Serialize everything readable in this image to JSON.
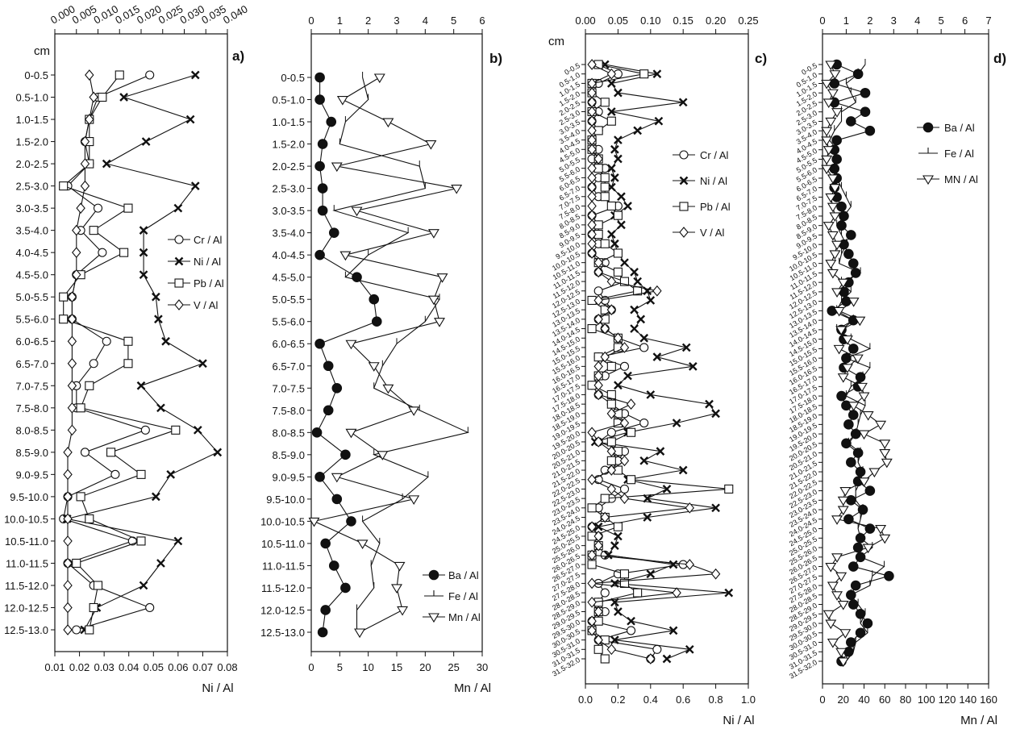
{
  "chart_data": [
    {
      "panel_label": "a)",
      "type": "line",
      "orientation": "vertical-profile",
      "y_title": "cm",
      "depths": [
        "0-0.5",
        "0.5-1.0",
        "1.0-1.5",
        "1.5-2.0",
        "2.0-2.5",
        "2.5-3.0",
        "3.0-3.5",
        "3.5-4.0",
        "4.0-4.5",
        "4.5-5.0",
        "5.0-5.5",
        "5.5-6.0",
        "6.0-6.5",
        "6.5-7.0",
        "7.0-7.5",
        "7.5-8.0",
        "8.0-8.5",
        "8.5-9.0",
        "9.0-9.5",
        "9.5-10.0",
        "10.0-10.5",
        "10.5-11.0",
        "11.0-11.5",
        "11.5-12.0",
        "12.0-12.5",
        "12.5-13.0"
      ],
      "x_bottom": {
        "label": "Ni / Al",
        "ticks": [
          "0.01",
          "0.02",
          "0.03",
          "0.04",
          "0.05",
          "0.06",
          "0.07",
          "0.08"
        ],
        "lim": [
          0.01,
          0.08
        ]
      },
      "x_top": {
        "ticks": [
          "0.000",
          "0.005",
          "0.010",
          "0.015",
          "0.020",
          "0.025",
          "0.030",
          "0.035",
          "0.040"
        ],
        "lim": [
          0.0,
          0.04
        ]
      },
      "series": [
        {
          "name": "Cr / Al",
          "axis": "top",
          "marker": "circle-open",
          "values": [
            0.022,
            0.01,
            0.008,
            0.007,
            0.008,
            0.003,
            0.01,
            0.006,
            0.011,
            0.005,
            0.004,
            0.004,
            0.012,
            0.009,
            0.005,
            0.005,
            0.021,
            0.007,
            0.014,
            0.003,
            0.002,
            0.018,
            0.003,
            0.009,
            0.022,
            0.005
          ]
        },
        {
          "name": "Ni / Al",
          "axis": "bottom",
          "marker": "x",
          "values": [
            0.067,
            0.038,
            0.065,
            0.047,
            0.031,
            0.067,
            0.06,
            0.046,
            0.046,
            0.046,
            0.051,
            0.052,
            0.055,
            0.07,
            0.045,
            0.053,
            0.068,
            0.076,
            0.057,
            0.051,
            0.015,
            0.06,
            0.053,
            0.046,
            0.027,
            0.022
          ]
        },
        {
          "name": "Pb / Al",
          "axis": "top",
          "marker": "square-open",
          "values": [
            0.015,
            0.011,
            0.008,
            0.008,
            0.008,
            0.002,
            0.017,
            0.009,
            0.016,
            0.006,
            0.002,
            0.002,
            0.017,
            0.017,
            0.008,
            0.006,
            0.028,
            0.013,
            0.02,
            0.006,
            0.008,
            0.02,
            0.005,
            0.01,
            0.009,
            0.008
          ]
        },
        {
          "name": "V / Al",
          "axis": "top",
          "marker": "diamond-open",
          "values": [
            0.008,
            0.009,
            0.008,
            0.007,
            0.007,
            0.007,
            0.006,
            0.005,
            0.005,
            0.005,
            0.004,
            0.004,
            0.004,
            0.004,
            0.004,
            0.004,
            0.004,
            0.003,
            0.003,
            0.003,
            0.003,
            0.003,
            0.003,
            0.003,
            0.003,
            0.003
          ]
        }
      ]
    },
    {
      "panel_label": "b)",
      "type": "line",
      "orientation": "vertical-profile",
      "depths": [
        "0-0.5",
        "0.5-1.0",
        "1.0-1.5",
        "1.5-2.0",
        "2.0-2.5",
        "2.5-3.0",
        "3.0-3.5",
        "3.5-4.0",
        "4.0-4.5",
        "4.5-5.0",
        "5.0-5.5",
        "5.5-6.0",
        "6.0-6.5",
        "6.5-7.0",
        "7.0-7.5",
        "7.5-8.0",
        "8.0-8.5",
        "8.5-9.0",
        "9.0-9.5",
        "9.5-10.0",
        "10.0-10.5",
        "10.5-11.0",
        "11.0-11.5",
        "11.5-12.0",
        "12.0-12.5",
        "12.5-13.0"
      ],
      "x_bottom": {
        "label": "Mn / Al",
        "ticks": [
          "0",
          "5",
          "10",
          "15",
          "20",
          "25",
          "30"
        ],
        "lim": [
          0,
          30
        ]
      },
      "x_top": {
        "ticks": [
          "0",
          "1",
          "2",
          "3",
          "4",
          "5",
          "6"
        ],
        "lim": [
          0,
          6
        ]
      },
      "series": [
        {
          "name": "Ba / Al",
          "axis": "top",
          "marker": "circle-filled",
          "values": [
            0.3,
            0.3,
            0.7,
            0.4,
            0.3,
            0.4,
            0.4,
            0.8,
            0.3,
            1.6,
            2.2,
            2.3,
            0.3,
            0.6,
            0.9,
            0.6,
            0.2,
            1.2,
            0.3,
            0.9,
            1.4,
            0.5,
            0.8,
            1.2,
            0.5,
            0.4
          ]
        },
        {
          "name": "Fe / Al",
          "axis": "top",
          "marker": "none",
          "values": [
            1.8,
            2.0,
            1.2,
            1.0,
            3.8,
            4.0,
            0.8,
            3.4,
            2.0,
            1.2,
            4.5,
            4.0,
            3.0,
            2.5,
            2.2,
            3.8,
            5.5,
            2.2,
            4.1,
            3.2,
            1.8,
            2.4,
            2.1,
            2.2,
            1.6,
            1.6
          ]
        },
        {
          "name": "Mn / Al",
          "axis": "bottom",
          "marker": "triangle-down-open",
          "values": [
            12.0,
            5.5,
            13.5,
            21.0,
            4.5,
            25.5,
            8.0,
            21.5,
            6.0,
            23.0,
            21.5,
            22.5,
            7.0,
            11.0,
            13.5,
            18.0,
            7.0,
            12.5,
            4.5,
            18.0,
            0.5,
            9.0,
            15.5,
            15.0,
            16.0,
            8.5
          ]
        }
      ]
    },
    {
      "panel_label": "c)",
      "type": "line",
      "orientation": "vertical-profile",
      "y_title": "cm",
      "depths": [
        "0-0.5",
        "0.5-1.0",
        "1.0-1.5",
        "1.5-2.0",
        "2.0-2.5",
        "2.5-3.0",
        "3.0-3.5",
        "3.5-4.0",
        "4.0-4.5",
        "4.5-5.0",
        "5.0-5.5",
        "5.5-6.0",
        "6.0-6.5",
        "6.5-7.0",
        "7.0-7.5",
        "7.5-8.0",
        "8.0-8.5",
        "8.5-9.0",
        "9.0-9.5",
        "9.5-10.0",
        "10.0-10.5",
        "10.5-11.0",
        "11.0-11.5",
        "11.5-12.0",
        "12.0-12.5",
        "12.5-13.0",
        "13.0-13.5",
        "13.5-14.0",
        "14.0-14.5",
        "14.5-15.0",
        "15.0-15.5",
        "15.5-16.0",
        "16.0-16.5",
        "16.5-17.0",
        "17.0-17.5",
        "17.5-18.0",
        "18.0-18.5",
        "18.5-19.0",
        "19.0-19.5",
        "19.5-20.0",
        "20.0-20.5",
        "20.5-21.0",
        "21.0-21.5",
        "21.5-22.0",
        "22.0-22.5",
        "22.5-23.0",
        "23.0-23.5",
        "23.5-24.0",
        "24.0-24.5",
        "24.5-25.0",
        "25.0-25.5",
        "25.5-26.0",
        "26.0-26.5",
        "26.5-27.0",
        "27.0-27.5",
        "27.5-28.0",
        "28.0-28.5",
        "28.5-29.0",
        "29.0-29.5",
        "29.5-30.0",
        "30.0-30.5",
        "30.5-31.0",
        "31.0-31.5",
        "31.5-32.0"
      ],
      "x_bottom": {
        "label": "Ni / Al",
        "ticks": [
          "0.0",
          "0.2",
          "0.4",
          "0.6",
          "0.8",
          "1.0"
        ],
        "lim": [
          0.0,
          1.0
        ]
      },
      "x_top": {
        "ticks": [
          "0.00",
          "0.05",
          "0.10",
          "0.15",
          "0.20",
          "0.25"
        ],
        "lim": [
          0.0,
          0.25
        ]
      },
      "series": [
        {
          "name": "Cr / Al",
          "axis": "top",
          "marker": "circle-open",
          "values": [
            0.02,
            0.05,
            0.02,
            0.01,
            0.01,
            0.02,
            0.01,
            0.02,
            0.01,
            0.02,
            0.01,
            0.03,
            0.02,
            0.01,
            0.02,
            0.05,
            0.01,
            0.02,
            0.01,
            0.02,
            0.01,
            0.03,
            0.02,
            0.06,
            0.02,
            0.03,
            0.04,
            0.02,
            0.03,
            0.05,
            0.09,
            0.02,
            0.06,
            0.03,
            0.01,
            0.02,
            0.04,
            0.06,
            0.09,
            0.04,
            0.02,
            0.06,
            0.05,
            0.03,
            0.02,
            0.06,
            0.04,
            0.02,
            0.03,
            0.01,
            0.02,
            0.02,
            0.03,
            0.15,
            0.05,
            0.02,
            0.03,
            0.02,
            0.03,
            0.01,
            0.07,
            0.02,
            0.11,
            0.1
          ]
        },
        {
          "name": "Ni / Al",
          "axis": "bottom",
          "marker": "x",
          "values": [
            0.12,
            0.44,
            0.16,
            0.2,
            0.6,
            0.16,
            0.45,
            0.32,
            0.2,
            0.18,
            0.2,
            0.16,
            0.18,
            0.16,
            0.22,
            0.26,
            0.18,
            0.22,
            0.16,
            0.18,
            0.2,
            0.24,
            0.3,
            0.32,
            0.38,
            0.4,
            0.3,
            0.34,
            0.3,
            0.36,
            0.62,
            0.44,
            0.66,
            0.26,
            0.2,
            0.4,
            0.76,
            0.8,
            0.56,
            0.26,
            0.06,
            0.46,
            0.36,
            0.6,
            0.26,
            0.5,
            0.38,
            0.8,
            0.38,
            0.08,
            0.2,
            0.18,
            0.14,
            0.54,
            0.4,
            0.18,
            0.88,
            0.18,
            0.2,
            0.28,
            0.54,
            0.18,
            0.64,
            0.5
          ]
        },
        {
          "name": "Pb / Al",
          "axis": "top",
          "marker": "square-open",
          "values": [
            0.02,
            0.09,
            0.01,
            0.01,
            0.03,
            0.01,
            0.04,
            0.02,
            0.01,
            0.01,
            0.02,
            0.02,
            0.03,
            0.03,
            0.03,
            0.04,
            0.05,
            0.02,
            0.02,
            0.03,
            0.05,
            0.02,
            0.05,
            0.06,
            0.08,
            0.01,
            0.03,
            0.03,
            0.01,
            0.05,
            0.05,
            0.02,
            0.04,
            0.02,
            0.01,
            0.04,
            0.04,
            0.05,
            0.05,
            0.07,
            0.04,
            0.05,
            0.04,
            0.05,
            0.07,
            0.22,
            0.03,
            0.01,
            0.03,
            0.05,
            0.01,
            0.02,
            0.01,
            0.01,
            0.06,
            0.06,
            0.08,
            0.02,
            0.02,
            0.02,
            0.01,
            0.03,
            0.02,
            0.03
          ]
        },
        {
          "name": "V / Al",
          "axis": "top",
          "marker": "diamond-open",
          "values": [
            0.01,
            0.04,
            0.01,
            0.01,
            0.01,
            0.01,
            0.01,
            0.01,
            0.01,
            0.01,
            0.02,
            0.01,
            0.01,
            0.01,
            0.01,
            0.01,
            0.01,
            0.01,
            0.01,
            0.01,
            0.01,
            0.02,
            0.02,
            0.04,
            0.11,
            0.02,
            0.04,
            0.02,
            0.03,
            0.05,
            0.06,
            0.03,
            0.02,
            0.02,
            0.02,
            0.02,
            0.07,
            0.04,
            0.06,
            0.01,
            0.02,
            0.04,
            0.06,
            0.04,
            0.01,
            0.04,
            0.06,
            0.16,
            0.03,
            0.01,
            0.02,
            0.02,
            0.01,
            0.16,
            0.2,
            0.01,
            0.14,
            0.01,
            0.02,
            0.01,
            0.01,
            0.02,
            0.04,
            0.1
          ]
        }
      ]
    },
    {
      "panel_label": "d)",
      "type": "line",
      "orientation": "vertical-profile",
      "depths": [
        "0-0.5",
        "0.5-1.0",
        "1.0-1.5",
        "1.5-2.0",
        "2.0-2.5",
        "2.5-3.0",
        "3.0-3.5",
        "3.5-4.0",
        "4.0-4.5",
        "4.5-5.0",
        "5.0-5.5",
        "5.5-6.0",
        "6.0-6.5",
        "6.5-7.0",
        "7.0-7.5",
        "7.5-8.0",
        "8.0-8.5",
        "8.5-9.0",
        "9.0-9.5",
        "9.5-10.0",
        "10.0-10.5",
        "10.5-11.0",
        "11.0-11.5",
        "11.5-12.0",
        "12.0-12.5",
        "12.5-13.0",
        "13.0-13.5",
        "13.5-14.0",
        "14.0-14.5",
        "14.5-15.0",
        "15.0-15.5",
        "15.5-16.0",
        "16.0-16.5",
        "16.5-17.0",
        "17.0-17.5",
        "17.5-18.0",
        "18.0-18.5",
        "18.5-19.0",
        "19.0-19.5",
        "19.5-20.0",
        "20.0-20.5",
        "20.5-21.0",
        "21.0-21.5",
        "21.5-22.0",
        "22.0-22.5",
        "22.5-23.0",
        "23.0-23.5",
        "23.5-24.0",
        "24.0-24.5",
        "24.5-25.0",
        "25.0-25.5",
        "25.5-26.0",
        "26.0-26.5",
        "26.5-27.0",
        "27.0-27.5",
        "27.5-28.0",
        "28.0-28.5",
        "28.5-29.0",
        "29.0-29.5",
        "29.5-30.0",
        "30.0-30.5",
        "30.5-31.0",
        "31.0-31.5",
        "31.5-32.0"
      ],
      "x_bottom": {
        "label": "Mn / Al",
        "ticks": [
          "0",
          "20",
          "40",
          "60",
          "80",
          "100",
          "120",
          "140",
          "160"
        ],
        "lim": [
          0,
          160
        ]
      },
      "x_top": {
        "ticks": [
          "0",
          "1",
          "2",
          "3",
          "4",
          "5",
          "6",
          "7"
        ],
        "lim": [
          0,
          7
        ]
      },
      "series": [
        {
          "name": "Ba / Al",
          "axis": "top",
          "marker": "circle-filled",
          "values": [
            0.6,
            1.5,
            0.5,
            1.8,
            0.5,
            1.8,
            1.2,
            2.0,
            0.6,
            0.5,
            0.6,
            0.5,
            0.6,
            0.5,
            0.6,
            0.8,
            0.9,
            0.8,
            1.2,
            0.9,
            1.1,
            1.3,
            1.4,
            1.1,
            0.9,
            1.0,
            0.4,
            1.3,
            0.8,
            0.9,
            1.3,
            1.0,
            0.9,
            1.6,
            1.5,
            0.8,
            1.0,
            1.3,
            1.1,
            1.4,
            1.0,
            1.5,
            1.2,
            1.6,
            1.5,
            2.0,
            1.2,
            1.7,
            1.1,
            2.0,
            1.6,
            1.5,
            1.6,
            1.3,
            2.8,
            1.4,
            1.2,
            1.3,
            1.6,
            1.9,
            1.6,
            1.2,
            1.1,
            0.8
          ]
        },
        {
          "name": "Fe / Al",
          "axis": "top",
          "marker": "none",
          "values": [
            1.8,
            1.5,
            1.0,
            1.2,
            1.4,
            0.8,
            0.8,
            0.5,
            0.3,
            0.6,
            0.5,
            0.5,
            0.6,
            0.8,
            1.0,
            1.2,
            0.9,
            0.6,
            0.8,
            1.0,
            0.8,
            0.7,
            1.6,
            0.8,
            1.2,
            0.8,
            0.6,
            1.3,
            0.6,
            1.2,
            2.0,
            1.0,
            2.0,
            1.7,
            1.2,
            1.0,
            1.8,
            1.6,
            1.5,
            1.4,
            1.1,
            1.6,
            1.5,
            1.7,
            1.6,
            1.4,
            1.4,
            1.7,
            1.6,
            1.5,
            1.6,
            2.1,
            1.6,
            2.6,
            2.1,
            2.0,
            1.2,
            1.5,
            1.8,
            1.6,
            1.9,
            1.4,
            1.3,
            1.0
          ]
        },
        {
          "name": "MN / Al",
          "axis": "bottom",
          "marker": "triangle-down-open",
          "values": [
            8,
            12,
            4,
            10,
            6,
            14,
            8,
            4,
            4,
            6,
            4,
            4,
            10,
            12,
            8,
            10,
            12,
            6,
            10,
            14,
            12,
            8,
            10,
            20,
            14,
            30,
            16,
            36,
            18,
            24,
            16,
            34,
            24,
            20,
            38,
            40,
            30,
            44,
            56,
            40,
            60,
            60,
            62,
            50,
            40,
            22,
            20,
            20,
            14,
            56,
            60,
            44,
            14,
            8,
            18,
            10,
            14,
            20,
            6,
            8,
            22,
            10,
            18,
            20
          ]
        }
      ]
    }
  ]
}
